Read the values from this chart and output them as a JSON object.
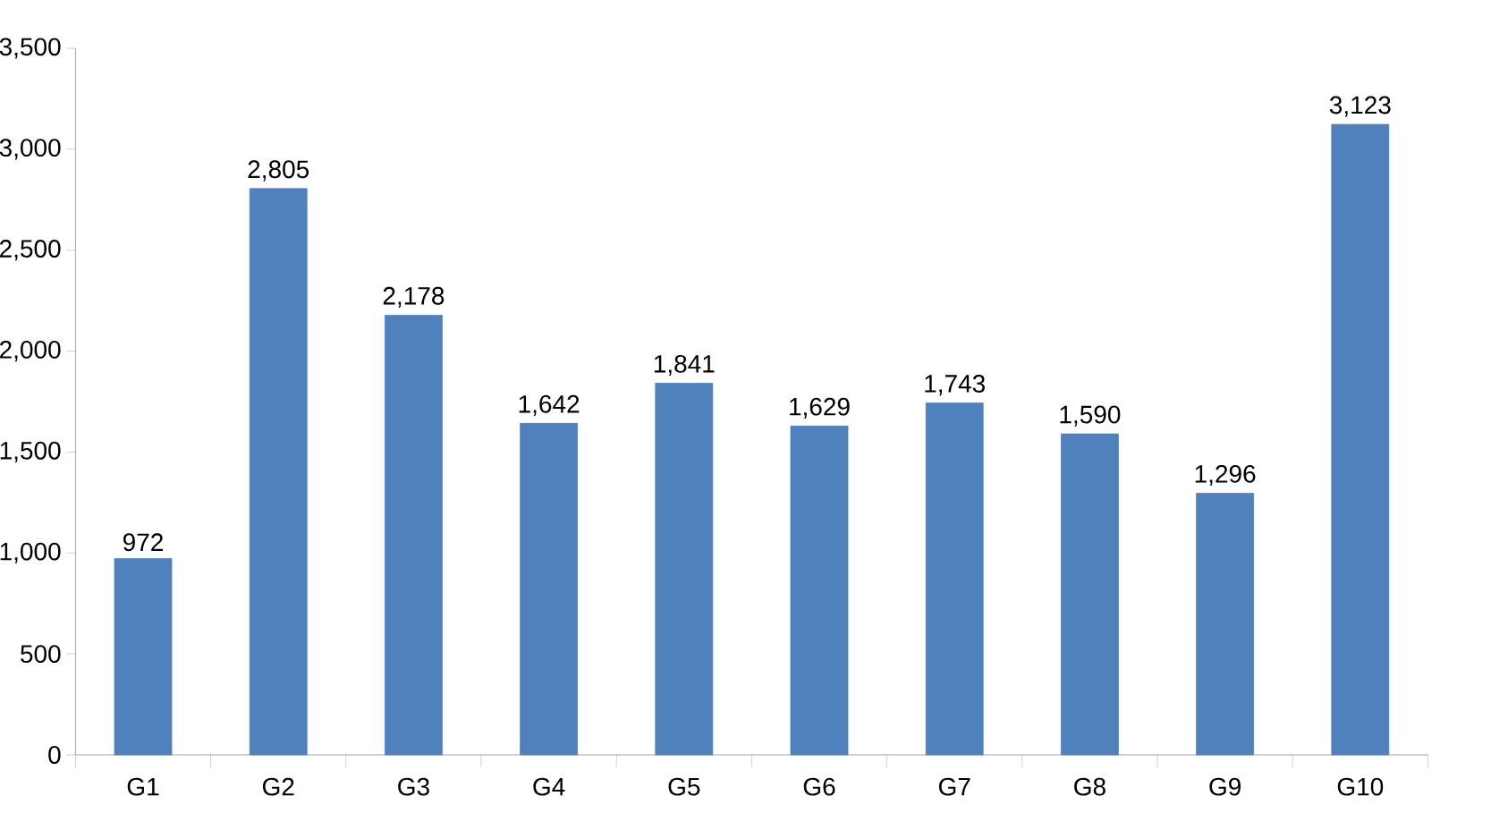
{
  "chart_data": {
    "type": "bar",
    "categories": [
      "G1",
      "G2",
      "G3",
      "G4",
      "G5",
      "G6",
      "G7",
      "G8",
      "G9",
      "G10"
    ],
    "values": [
      972,
      2805,
      2178,
      1642,
      1841,
      1629,
      1743,
      1590,
      1296,
      3123
    ],
    "value_labels": [
      "972",
      "2,805",
      "2,178",
      "1,642",
      "1,841",
      "1,629",
      "1,743",
      "1,590",
      "1,296",
      "3,123"
    ],
    "color": "#4f81bd",
    "ylim": [
      0,
      3500
    ],
    "yticks": [
      0,
      500,
      {
        "value": 1000,
        "label": "1,000"
      },
      {
        "value": 1500,
        "label": "1,500"
      },
      {
        "value": 2000,
        "label": "2,000"
      },
      {
        "value": 2500,
        "label": "2,500"
      },
      {
        "value": 3000,
        "label": "3,000"
      },
      {
        "value": 3500,
        "label": "3,500"
      }
    ]
  }
}
